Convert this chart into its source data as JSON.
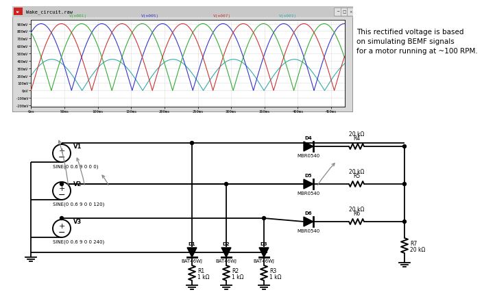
{
  "title": "Wake_circuit.raw",
  "annotation_text": "This rectified voltage is based\non simulating BEMF signals\nfor a motor running at ~100 RPM.",
  "plot_xlim": [
    0,
    0.47
  ],
  "plot_ylim": [
    -0.22,
    0.95
  ],
  "yticks": [
    -0.2,
    -0.1,
    0.0,
    0.1,
    0.2,
    0.3,
    0.4,
    0.5,
    0.6,
    0.7,
    0.8,
    0.9
  ],
  "ytick_labels": [
    "-200mV",
    "-100mV",
    "0mV",
    "100mV",
    "200mV",
    "300mV",
    "400mV",
    "500mV",
    "600mV",
    "700mV",
    "800mV",
    "900mV"
  ],
  "xticks": [
    0,
    0.05,
    0.1,
    0.15,
    0.2,
    0.25,
    0.3,
    0.35,
    0.4,
    0.45
  ],
  "xtick_labels": [
    "0ms",
    "50ms",
    "100ms",
    "150ms",
    "200ms",
    "250ms",
    "300ms",
    "350ms",
    "400ms",
    "450ms"
  ],
  "legend_labels": [
    "V(n001)",
    "V(n005)",
    "V(n007)",
    "V(n003)"
  ],
  "legend_colors": [
    "#33aa33",
    "#3333cc",
    "#cc3333",
    "#33aaaa"
  ],
  "sig_colors": [
    "#cc3333",
    "#3333cc",
    "#33aa33",
    "#33aaaa"
  ],
  "freq": 11.0,
  "amplitude": 0.9,
  "cyan_amplitude": 0.42,
  "bg_color": "#f0f0f0",
  "scope_frame_color": "#aaaaaa",
  "scope_titlebar_color": "#d0d0d0",
  "scope_bg": "#ffffff"
}
